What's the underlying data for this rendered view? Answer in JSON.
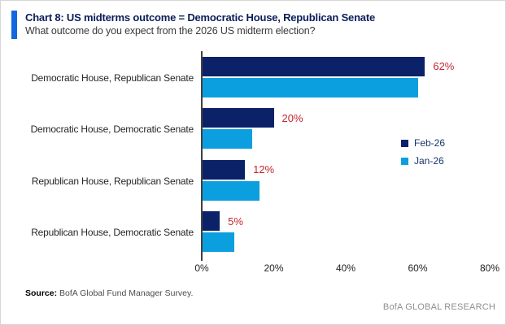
{
  "header": {
    "title": "Chart 8: US midterms outcome = Democratic House, Republican Senate",
    "subtitle": "What outcome do you expect from the 2026 US midterm election?",
    "accent_color": "#1268e0"
  },
  "chart_data": {
    "type": "bar",
    "orientation": "horizontal",
    "title": "Chart 8: US midterms outcome = Democratic House, Republican Senate",
    "subtitle": "What outcome do you expect from the 2026 US midterm election?",
    "categories": [
      "Democratic House, Republican Senate",
      "Democratic House, Democratic Senate",
      "Republican House, Republican Senate",
      "Republican House, Democratic Senate"
    ],
    "series": [
      {
        "name": "Feb-26",
        "color": "#0b2268",
        "values": [
          62,
          20,
          12,
          5
        ],
        "data_labels": [
          "62%",
          "20%",
          "12%",
          "5%"
        ]
      },
      {
        "name": "Jan-26",
        "color": "#0c9fdf",
        "values": [
          60,
          14,
          16,
          9
        ]
      }
    ],
    "xlim": [
      0,
      80
    ],
    "xtick_values": [
      0,
      20,
      40,
      60,
      80
    ],
    "xtick_labels": [
      "0%",
      "20%",
      "40%",
      "60%",
      "80%"
    ],
    "data_label_color": "#c2262e",
    "axis_color": "#404040",
    "grid": false,
    "legend_position": "center-right"
  },
  "footer": {
    "source_label": "Source:",
    "source_text": " BofA Global Fund Manager Survey.",
    "brand": "BofA GLOBAL RESEARCH"
  }
}
